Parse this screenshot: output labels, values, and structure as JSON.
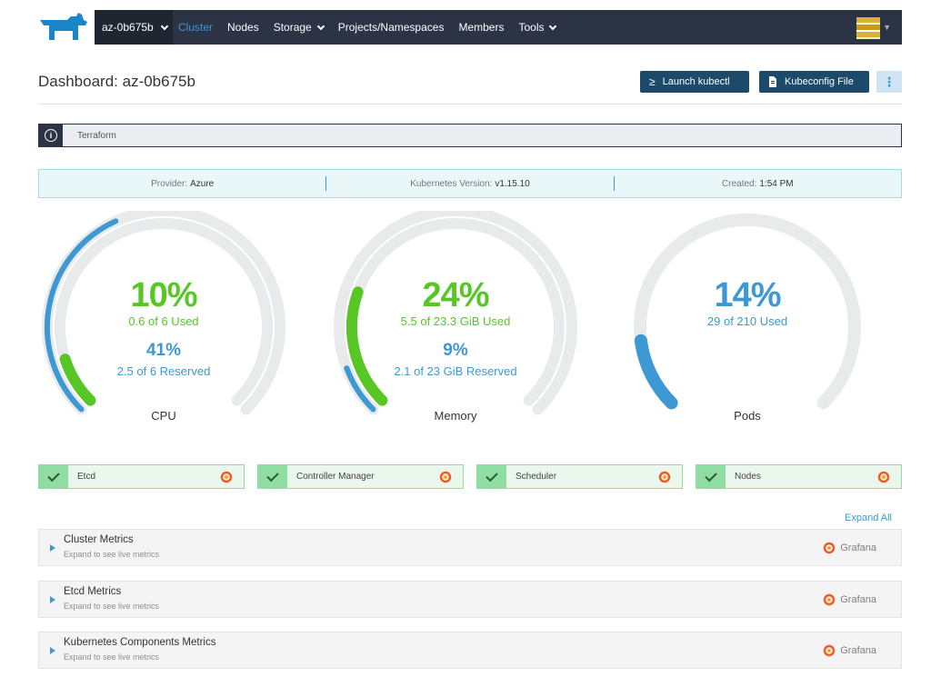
{
  "nav": {
    "cluster": "az-0b675b",
    "links": [
      "Cluster",
      "Nodes",
      "Storage",
      "Projects/Namespaces",
      "Members",
      "Tools"
    ]
  },
  "header": {
    "title": "Dashboard: az-0b675b",
    "kubectl_label": "Launch kubectl",
    "kubeconfig_label": "Kubeconfig File",
    "more_label": "⋮"
  },
  "banner": {
    "text": "Terraform"
  },
  "info": {
    "provider_label": "Provider:",
    "provider": "Azure",
    "version_label": "Kubernetes Version:",
    "version": "v1.15.10",
    "created_label": "Created:",
    "created": "1:54 PM"
  },
  "gauges": {
    "cpu": {
      "pct": "10%",
      "used": "0.6 of 6 Used",
      "res_pct": "41%",
      "reserved": "2.5 of 6 Reserved",
      "name": "CPU",
      "used_frac": 0.1,
      "res_frac": 0.41
    },
    "memory": {
      "pct": "24%",
      "used": "5.5 of 23.3 GiB Used",
      "res_pct": "9%",
      "reserved": "2.1 of 23 GiB Reserved",
      "name": "Memory",
      "used_frac": 0.24,
      "res_frac": 0.09
    },
    "pods": {
      "pct": "14%",
      "used": "29 of 210 Used",
      "name": "Pods",
      "used_frac": 0.14
    }
  },
  "components": [
    "Etcd",
    "Controller Manager",
    "Scheduler",
    "Nodes"
  ],
  "expand_all": "Expand All",
  "metrics": {
    "subtitle": "Expand to see live metrics",
    "grafana": "Grafana",
    "items": [
      "Cluster Metrics",
      "Etcd Metrics",
      "Kubernetes Components Metrics"
    ]
  },
  "colors": {
    "green": "#58c726",
    "blue": "#3d98d3",
    "track": "#e8eaec",
    "nav": "#2b3344"
  }
}
